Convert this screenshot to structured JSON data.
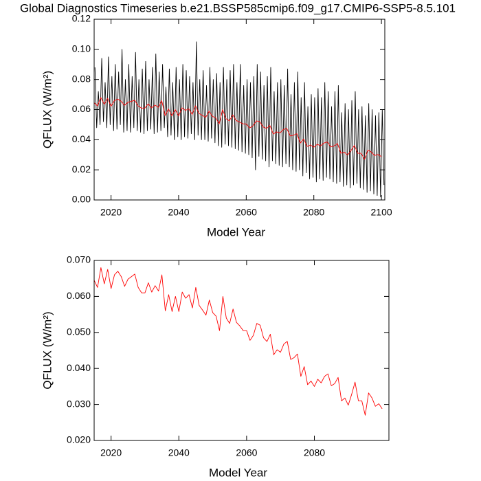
{
  "chart_data": [
    {
      "type": "line",
      "title": "Global Diagnostics Timeseries b.e21.BSSP585cmip6.f09_g17.CMIP6-SSP5-8.5.101",
      "x_label": "Model Year",
      "y_label": "QFLUX (W/m²)",
      "xlim": [
        2015,
        2101
      ],
      "ylim": [
        0,
        0.12
      ],
      "xticks": [
        2020,
        2040,
        2060,
        2080,
        2100
      ],
      "yticks": [
        {
          "value": 0,
          "label": "0.00"
        },
        {
          "value": 0.02,
          "label": "0.02"
        },
        {
          "value": 0.04,
          "label": "0.04"
        },
        {
          "value": 0.06,
          "label": "0.06"
        },
        {
          "value": 0.08,
          "label": "0.08"
        },
        {
          "value": 0.1,
          "label": "0.10"
        },
        {
          "value": 0.12,
          "label": "0.12"
        }
      ],
      "series": [
        {
          "color": "#000000",
          "x": [
            2015.25,
            2015.75,
            2016.25,
            2016.75,
            2017.25,
            2017.75,
            2018.25,
            2018.75,
            2019.25,
            2019.75,
            2020.25,
            2020.75,
            2021.25,
            2021.75,
            2022.25,
            2022.75,
            2023.25,
            2023.75,
            2024.25,
            2024.75,
            2025.25,
            2025.75,
            2026.25,
            2026.75,
            2027.25,
            2027.75,
            2028.25,
            2028.75,
            2029.25,
            2029.75,
            2030.25,
            2030.75,
            2031.25,
            2031.75,
            2032.25,
            2032.75,
            2033.25,
            2033.75,
            2034.25,
            2034.75,
            2035.25,
            2035.75,
            2036.25,
            2036.75,
            2037.25,
            2037.75,
            2038.25,
            2038.75,
            2039.25,
            2039.75,
            2040.25,
            2040.75,
            2041.25,
            2041.75,
            2042.25,
            2042.75,
            2043.25,
            2043.75,
            2044.25,
            2044.75,
            2045.25,
            2045.75,
            2046.25,
            2046.75,
            2047.25,
            2047.75,
            2048.25,
            2048.75,
            2049.25,
            2049.75,
            2050.25,
            2050.75,
            2051.25,
            2051.75,
            2052.25,
            2052.75,
            2053.25,
            2053.75,
            2054.25,
            2054.75,
            2055.25,
            2055.75,
            2056.25,
            2056.75,
            2057.25,
            2057.75,
            2058.25,
            2058.75,
            2059.25,
            2059.75,
            2060.25,
            2060.75,
            2061.25,
            2061.75,
            2062.25,
            2062.75,
            2063.25,
            2063.75,
            2064.25,
            2064.75,
            2065.25,
            2065.75,
            2066.25,
            2066.75,
            2067.25,
            2067.75,
            2068.25,
            2068.75,
            2069.25,
            2069.75,
            2070.25,
            2070.75,
            2071.25,
            2071.75,
            2072.25,
            2072.75,
            2073.25,
            2073.75,
            2074.25,
            2074.75,
            2075.25,
            2075.75,
            2076.25,
            2076.75,
            2077.25,
            2077.75,
            2078.25,
            2078.75,
            2079.25,
            2079.75,
            2080.25,
            2080.75,
            2081.25,
            2081.75,
            2082.25,
            2082.75,
            2083.25,
            2083.75,
            2084.25,
            2084.75,
            2085.25,
            2085.75,
            2086.25,
            2086.75,
            2087.25,
            2087.75,
            2088.25,
            2088.75,
            2089.25,
            2089.75,
            2090.25,
            2090.75,
            2091.25,
            2091.75,
            2092.25,
            2092.75,
            2093.25,
            2093.75,
            2094.25,
            2094.75,
            2095.25,
            2095.75,
            2096.25,
            2096.75,
            2097.25,
            2097.75,
            2098.25,
            2098.75,
            2099.25,
            2099.75,
            2100.25,
            2100.75
          ],
          "values": [
            0.088,
            0.048,
            0.072,
            0.05,
            0.094,
            0.052,
            0.078,
            0.048,
            0.095,
            0.05,
            0.082,
            0.046,
            0.09,
            0.047,
            0.085,
            0.05,
            0.1,
            0.045,
            0.08,
            0.046,
            0.09,
            0.045,
            0.082,
            0.048,
            0.098,
            0.046,
            0.08,
            0.045,
            0.087,
            0.044,
            0.092,
            0.046,
            0.08,
            0.047,
            0.088,
            0.044,
            0.097,
            0.045,
            0.085,
            0.046,
            0.09,
            0.048,
            0.075,
            0.042,
            0.087,
            0.043,
            0.078,
            0.04,
            0.088,
            0.042,
            0.08,
            0.04,
            0.09,
            0.042,
            0.086,
            0.041,
            0.082,
            0.044,
            0.078,
            0.04,
            0.105,
            0.043,
            0.08,
            0.04,
            0.086,
            0.04,
            0.076,
            0.039,
            0.088,
            0.041,
            0.08,
            0.038,
            0.084,
            0.036,
            0.078,
            0.035,
            0.088,
            0.037,
            0.08,
            0.036,
            0.086,
            0.035,
            0.09,
            0.034,
            0.078,
            0.033,
            0.09,
            0.032,
            0.076,
            0.031,
            0.08,
            0.03,
            0.078,
            0.028,
            0.082,
            0.02,
            0.09,
            0.029,
            0.085,
            0.027,
            0.076,
            0.026,
            0.082,
            0.022,
            0.088,
            0.026,
            0.072,
            0.024,
            0.078,
            0.023,
            0.08,
            0.022,
            0.076,
            0.024,
            0.087,
            0.022,
            0.07,
            0.02,
            0.078,
            0.019,
            0.085,
            0.02,
            0.068,
            0.016,
            0.078,
            0.018,
            0.062,
            0.014,
            0.07,
            0.015,
            0.068,
            0.012,
            0.074,
            0.014,
            0.068,
            0.013,
            0.078,
            0.015,
            0.072,
            0.014,
            0.062,
            0.012,
            0.072,
            0.011,
            0.076,
            0.012,
            0.058,
            0.009,
            0.064,
            0.01,
            0.06,
            0.008,
            0.066,
            0.01,
            0.072,
            0.011,
            0.06,
            0.008,
            0.062,
            0.007,
            0.056,
            0.005,
            0.064,
            0.006,
            0.06,
            0.004,
            0.056,
            0.003,
            0.058,
            0.002,
            0.06,
            0.01
          ]
        },
        {
          "color": "#ff0000",
          "x": [
            2015,
            2016,
            2017,
            2018,
            2019,
            2020,
            2021,
            2022,
            2023,
            2024,
            2025,
            2026,
            2027,
            2028,
            2029,
            2030,
            2031,
            2032,
            2033,
            2034,
            2035,
            2036,
            2037,
            2038,
            2039,
            2040,
            2041,
            2042,
            2043,
            2044,
            2045,
            2046,
            2047,
            2048,
            2049,
            2050,
            2051,
            2052,
            2053,
            2054,
            2055,
            2056,
            2057,
            2058,
            2059,
            2060,
            2061,
            2062,
            2063,
            2064,
            2065,
            2066,
            2067,
            2068,
            2069,
            2070,
            2071,
            2072,
            2073,
            2074,
            2075,
            2076,
            2077,
            2078,
            2079,
            2080,
            2081,
            2082,
            2083,
            2084,
            2085,
            2086,
            2087,
            2088,
            2089,
            2090,
            2091,
            2092,
            2093,
            2094,
            2095,
            2096,
            2097,
            2098,
            2099,
            2100
          ],
          "values": [
            0.0645,
            0.0625,
            0.068,
            0.0635,
            0.0675,
            0.0622,
            0.066,
            0.067,
            0.0655,
            0.0628,
            0.0648,
            0.0655,
            0.0662,
            0.0625,
            0.061,
            0.061,
            0.0638,
            0.0612,
            0.063,
            0.0615,
            0.066,
            0.056,
            0.0605,
            0.0558,
            0.06,
            0.0558,
            0.0612,
            0.0595,
            0.0605,
            0.0568,
            0.0625,
            0.0575,
            0.0562,
            0.0548,
            0.059,
            0.0555,
            0.0545,
            0.0505,
            0.06,
            0.054,
            0.0525,
            0.0565,
            0.0528,
            0.0518,
            0.0505,
            0.0505,
            0.0478,
            0.0492,
            0.0525,
            0.052,
            0.0485,
            0.0475,
            0.0495,
            0.0438,
            0.0452,
            0.0445,
            0.0468,
            0.0475,
            0.0425,
            0.043,
            0.044,
            0.0378,
            0.0405,
            0.0355,
            0.0365,
            0.035,
            0.037,
            0.036,
            0.0378,
            0.0385,
            0.0352,
            0.0358,
            0.0375,
            0.031,
            0.0318,
            0.0298,
            0.0328,
            0.0362,
            0.031,
            0.031,
            0.027,
            0.0332,
            0.0318,
            0.0295,
            0.0302,
            0.0288
          ]
        }
      ]
    },
    {
      "type": "line",
      "x_label": "Model Year",
      "y_label": "QFLUX (W/m²)",
      "xlim": [
        2015,
        2102
      ],
      "ylim": [
        0.02,
        0.07
      ],
      "xticks": [
        2020,
        2040,
        2060,
        2080
      ],
      "yticks": [
        {
          "value": 0.02,
          "label": "0.020"
        },
        {
          "value": 0.03,
          "label": "0.030"
        },
        {
          "value": 0.04,
          "label": "0.040"
        },
        {
          "value": 0.05,
          "label": "0.050"
        },
        {
          "value": 0.06,
          "label": "0.060"
        },
        {
          "value": 0.07,
          "label": "0.070"
        }
      ],
      "series": [
        {
          "color": "#ff0000",
          "x": [
            2015,
            2016,
            2017,
            2018,
            2019,
            2020,
            2021,
            2022,
            2023,
            2024,
            2025,
            2026,
            2027,
            2028,
            2029,
            2030,
            2031,
            2032,
            2033,
            2034,
            2035,
            2036,
            2037,
            2038,
            2039,
            2040,
            2041,
            2042,
            2043,
            2044,
            2045,
            2046,
            2047,
            2048,
            2049,
            2050,
            2051,
            2052,
            2053,
            2054,
            2055,
            2056,
            2057,
            2058,
            2059,
            2060,
            2061,
            2062,
            2063,
            2064,
            2065,
            2066,
            2067,
            2068,
            2069,
            2070,
            2071,
            2072,
            2073,
            2074,
            2075,
            2076,
            2077,
            2078,
            2079,
            2080,
            2081,
            2082,
            2083,
            2084,
            2085,
            2086,
            2087,
            2088,
            2089,
            2090,
            2091,
            2092,
            2093,
            2094,
            2095,
            2096,
            2097,
            2098,
            2099,
            2100
          ],
          "values": [
            0.0645,
            0.0625,
            0.068,
            0.0635,
            0.0675,
            0.0622,
            0.066,
            0.067,
            0.0655,
            0.0628,
            0.0648,
            0.0655,
            0.0662,
            0.0625,
            0.061,
            0.061,
            0.0638,
            0.0612,
            0.063,
            0.0615,
            0.066,
            0.056,
            0.0605,
            0.0558,
            0.06,
            0.0558,
            0.0612,
            0.0595,
            0.0605,
            0.0568,
            0.0625,
            0.0575,
            0.0562,
            0.0548,
            0.059,
            0.0555,
            0.0545,
            0.0505,
            0.06,
            0.054,
            0.0525,
            0.0565,
            0.0528,
            0.0518,
            0.0505,
            0.0505,
            0.0478,
            0.0492,
            0.0525,
            0.052,
            0.0485,
            0.0475,
            0.0495,
            0.0438,
            0.0452,
            0.0445,
            0.0468,
            0.0475,
            0.0425,
            0.043,
            0.044,
            0.0378,
            0.0405,
            0.0355,
            0.0365,
            0.035,
            0.037,
            0.036,
            0.0378,
            0.0385,
            0.0352,
            0.0358,
            0.0375,
            0.031,
            0.0318,
            0.0298,
            0.0328,
            0.0362,
            0.031,
            0.031,
            0.027,
            0.0332,
            0.0318,
            0.0295,
            0.0302,
            0.0288
          ]
        }
      ]
    }
  ]
}
